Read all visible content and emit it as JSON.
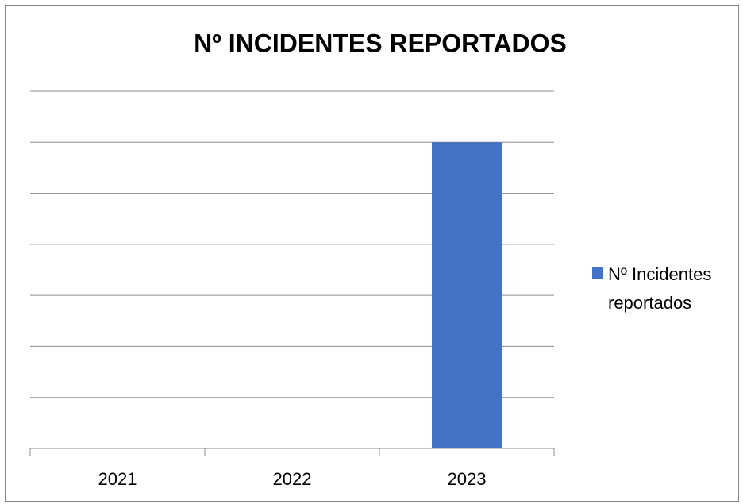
{
  "chart_data": {
    "type": "bar",
    "title": "Nº INCIDENTES REPORTADOS",
    "categories": [
      "2021",
      "2022",
      "2023"
    ],
    "series": [
      {
        "name": "Nº Incidentes reportados",
        "color": "#4472c4",
        "values": [
          0,
          0,
          6
        ]
      }
    ],
    "ylim": [
      0,
      7
    ],
    "yticks": [
      0,
      1,
      2,
      3,
      4,
      5,
      6,
      7
    ],
    "grid": true,
    "show_ytick_labels": false,
    "legend": "right"
  }
}
